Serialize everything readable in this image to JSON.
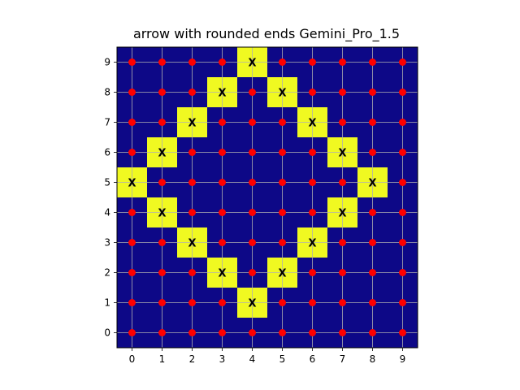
{
  "chart_data": {
    "type": "heatmap",
    "title": "arrow with rounded ends Gemini_Pro_1.5",
    "xlabel": "",
    "ylabel": "",
    "xlim": [
      -0.5,
      9.5
    ],
    "ylim": [
      -0.5,
      9.5
    ],
    "x_ticks": [
      0,
      1,
      2,
      3,
      4,
      5,
      6,
      7,
      8,
      9
    ],
    "y_ticks": [
      0,
      1,
      2,
      3,
      4,
      5,
      6,
      7,
      8,
      9
    ],
    "grid": true,
    "colors": {
      "background": "#0d0887",
      "highlight": "#f0f921",
      "point": "#ff0000",
      "grid": "#b0b0b0"
    },
    "highlighted_cells": [
      {
        "x": 4,
        "y": 9,
        "label": "X"
      },
      {
        "x": 3,
        "y": 8,
        "label": "X"
      },
      {
        "x": 5,
        "y": 8,
        "label": "X"
      },
      {
        "x": 2,
        "y": 7,
        "label": "X"
      },
      {
        "x": 6,
        "y": 7,
        "label": "X"
      },
      {
        "x": 1,
        "y": 6,
        "label": "X"
      },
      {
        "x": 7,
        "y": 6,
        "label": "X"
      },
      {
        "x": 0,
        "y": 5,
        "label": "X"
      },
      {
        "x": 8,
        "y": 5,
        "label": "X"
      },
      {
        "x": 1,
        "y": 4,
        "label": "X"
      },
      {
        "x": 7,
        "y": 4,
        "label": "X"
      },
      {
        "x": 2,
        "y": 3,
        "label": "X"
      },
      {
        "x": 6,
        "y": 3,
        "label": "X"
      },
      {
        "x": 3,
        "y": 2,
        "label": "X"
      },
      {
        "x": 5,
        "y": 2,
        "label": "X"
      },
      {
        "x": 4,
        "y": 1,
        "label": "X"
      }
    ],
    "points": "all integer grid positions x=0..9, y=0..9 not marked X"
  }
}
